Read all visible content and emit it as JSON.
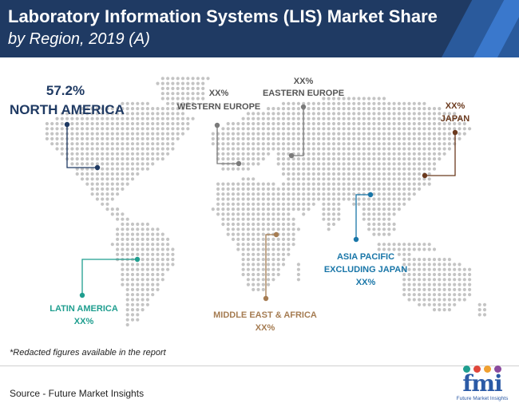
{
  "header": {
    "title_line1": "Laboratory Information Systems (LIS) Market Share",
    "title_line2": "by Region, 2019 (A)"
  },
  "regions": {
    "north_america": {
      "name": "NORTH AMERICA",
      "value": "57.2%",
      "color": "#1f3a63"
    },
    "western_europe": {
      "name": "WESTERN EUROPE",
      "value": "XX%",
      "color": "#7a7a7a"
    },
    "eastern_europe": {
      "name": "EASTERN EUROPE",
      "value": "XX%",
      "color": "#7a7a7a"
    },
    "japan": {
      "name": "JAPAN",
      "value": "XX%",
      "color": "#6b3a1e"
    },
    "asia_pacific": {
      "name_line1": "ASIA PACIFIC",
      "name_line2": "EXCLUDING JAPAN",
      "value": "XX%",
      "color": "#1976a8"
    },
    "latin_america": {
      "name": "LATIN AMERICA",
      "value": "XX%",
      "color": "#1f9e8f"
    },
    "mea": {
      "name": "MIDDLE EAST & AFRICA",
      "value": "XX%",
      "color": "#a57c52"
    }
  },
  "footnote": "*Redacted figures available in the report",
  "source": "Source - Future Market Insights",
  "logo": {
    "letters": "fmi",
    "tagline": "Future Market Insights",
    "dot_colors": [
      "#1f9e8f",
      "#e0463b",
      "#f0a030",
      "#8a4a9e"
    ]
  },
  "colors": {
    "header_bg": "#1f3a63",
    "map_dot": "#c4c4c4"
  }
}
